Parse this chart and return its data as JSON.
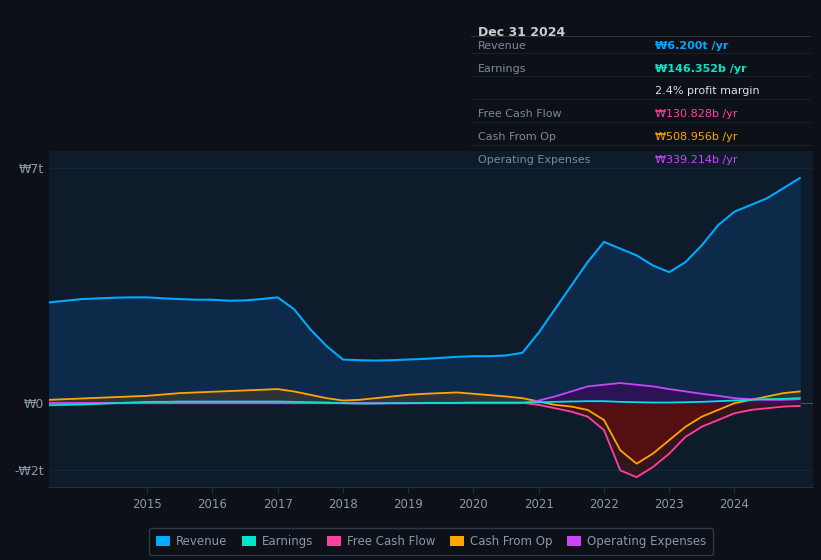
{
  "bg_color": "#0d1117",
  "plot_bg_color": "#0d1b2a",
  "grid_color": "#1e3050",
  "text_color": "#8899aa",
  "years": [
    2013.5,
    2013.75,
    2014.0,
    2014.25,
    2014.5,
    2014.75,
    2015.0,
    2015.25,
    2015.5,
    2015.75,
    2016.0,
    2016.25,
    2016.5,
    2016.75,
    2017.0,
    2017.25,
    2017.5,
    2017.75,
    2018.0,
    2018.25,
    2018.5,
    2018.75,
    2019.0,
    2019.25,
    2019.5,
    2019.75,
    2020.0,
    2020.25,
    2020.5,
    2020.75,
    2021.0,
    2021.25,
    2021.5,
    2021.75,
    2022.0,
    2022.25,
    2022.5,
    2022.75,
    2023.0,
    2023.25,
    2023.5,
    2023.75,
    2024.0,
    2024.25,
    2024.5,
    2024.75,
    2025.0
  ],
  "revenue": [
    3.0,
    3.05,
    3.1,
    3.12,
    3.14,
    3.15,
    3.15,
    3.12,
    3.1,
    3.08,
    3.08,
    3.05,
    3.06,
    3.1,
    3.15,
    2.8,
    2.2,
    1.7,
    1.3,
    1.28,
    1.27,
    1.28,
    1.3,
    1.32,
    1.35,
    1.38,
    1.4,
    1.4,
    1.42,
    1.5,
    2.1,
    2.8,
    3.5,
    4.2,
    4.8,
    4.6,
    4.4,
    4.1,
    3.9,
    4.2,
    4.7,
    5.3,
    5.7,
    5.9,
    6.1,
    6.4,
    6.7
  ],
  "earnings": [
    -0.06,
    -0.05,
    -0.04,
    -0.02,
    0.0,
    0.02,
    0.04,
    0.04,
    0.05,
    0.05,
    0.05,
    0.05,
    0.05,
    0.05,
    0.05,
    0.04,
    0.03,
    0.02,
    0.0,
    -0.01,
    -0.01,
    0.0,
    0.0,
    0.01,
    0.01,
    0.01,
    0.02,
    0.02,
    0.02,
    0.02,
    0.03,
    0.04,
    0.05,
    0.06,
    0.06,
    0.04,
    0.03,
    0.02,
    0.02,
    0.03,
    0.04,
    0.06,
    0.08,
    0.1,
    0.12,
    0.13,
    0.15
  ],
  "free_cash_flow": [
    0.0,
    0.0,
    0.0,
    0.01,
    0.01,
    0.01,
    0.01,
    0.01,
    0.01,
    0.01,
    0.01,
    0.01,
    0.01,
    0.01,
    0.01,
    0.01,
    0.01,
    0.0,
    0.0,
    0.0,
    0.0,
    0.0,
    0.0,
    0.0,
    0.01,
    0.01,
    0.01,
    0.01,
    0.01,
    0.01,
    -0.05,
    -0.15,
    -0.25,
    -0.4,
    -0.8,
    -2.0,
    -2.2,
    -1.9,
    -1.5,
    -1.0,
    -0.7,
    -0.5,
    -0.3,
    -0.2,
    -0.15,
    -0.1,
    -0.08
  ],
  "cash_from_op": [
    0.1,
    0.12,
    0.14,
    0.16,
    0.18,
    0.2,
    0.22,
    0.26,
    0.3,
    0.32,
    0.34,
    0.36,
    0.38,
    0.4,
    0.42,
    0.35,
    0.25,
    0.15,
    0.08,
    0.1,
    0.15,
    0.2,
    0.25,
    0.28,
    0.3,
    0.32,
    0.28,
    0.24,
    0.2,
    0.15,
    0.05,
    -0.05,
    -0.1,
    -0.2,
    -0.5,
    -1.4,
    -1.8,
    -1.5,
    -1.1,
    -0.7,
    -0.4,
    -0.2,
    0.0,
    0.1,
    0.2,
    0.3,
    0.35
  ],
  "operating_expenses": [
    0.0,
    0.0,
    0.0,
    0.0,
    0.0,
    0.0,
    0.0,
    0.0,
    0.0,
    0.0,
    0.0,
    0.0,
    0.0,
    0.0,
    0.0,
    0.0,
    0.0,
    0.0,
    0.0,
    0.0,
    0.0,
    0.0,
    0.0,
    0.0,
    0.0,
    0.0,
    0.0,
    0.0,
    0.0,
    0.0,
    0.08,
    0.2,
    0.35,
    0.5,
    0.55,
    0.6,
    0.55,
    0.5,
    0.42,
    0.35,
    0.28,
    0.22,
    0.15,
    0.12,
    0.1,
    0.1,
    0.12
  ],
  "revenue_color": "#00aaff",
  "revenue_fill_color": "#0d2a4a",
  "earnings_color": "#00e5cc",
  "free_cash_flow_color": "#ff40a0",
  "cash_from_op_color": "#ffa500",
  "cash_from_op_fill_color": "#353535",
  "operating_expenses_color": "#cc44ff",
  "operating_expenses_fill_color": "#3a0a5a",
  "neg_fill_color": "#5a1010",
  "ylim": [
    -2.5,
    7.5
  ],
  "xlim": [
    2013.5,
    2025.2
  ],
  "info_box_title": "Dec 31 2024",
  "info_rows": [
    {
      "label": "Revenue",
      "value": "₩6.200t /yr",
      "color": "#00aaff"
    },
    {
      "label": "Earnings",
      "value": "₩146.352b /yr",
      "color": "#00e5cc"
    },
    {
      "label": "",
      "value": "2.4% profit margin",
      "color": "#dddddd"
    },
    {
      "label": "Free Cash Flow",
      "value": "₩130.828b /yr",
      "color": "#ff40a0"
    },
    {
      "label": "Cash From Op",
      "value": "₩508.956b /yr",
      "color": "#ffa500"
    },
    {
      "label": "Operating Expenses",
      "value": "₩339.214b /yr",
      "color": "#cc44ff"
    }
  ],
  "legend_items": [
    {
      "label": "Revenue",
      "color": "#00aaff"
    },
    {
      "label": "Earnings",
      "color": "#00e5cc"
    },
    {
      "label": "Free Cash Flow",
      "color": "#ff40a0"
    },
    {
      "label": "Cash From Op",
      "color": "#ffa500"
    },
    {
      "label": "Operating Expenses",
      "color": "#cc44ff"
    }
  ]
}
